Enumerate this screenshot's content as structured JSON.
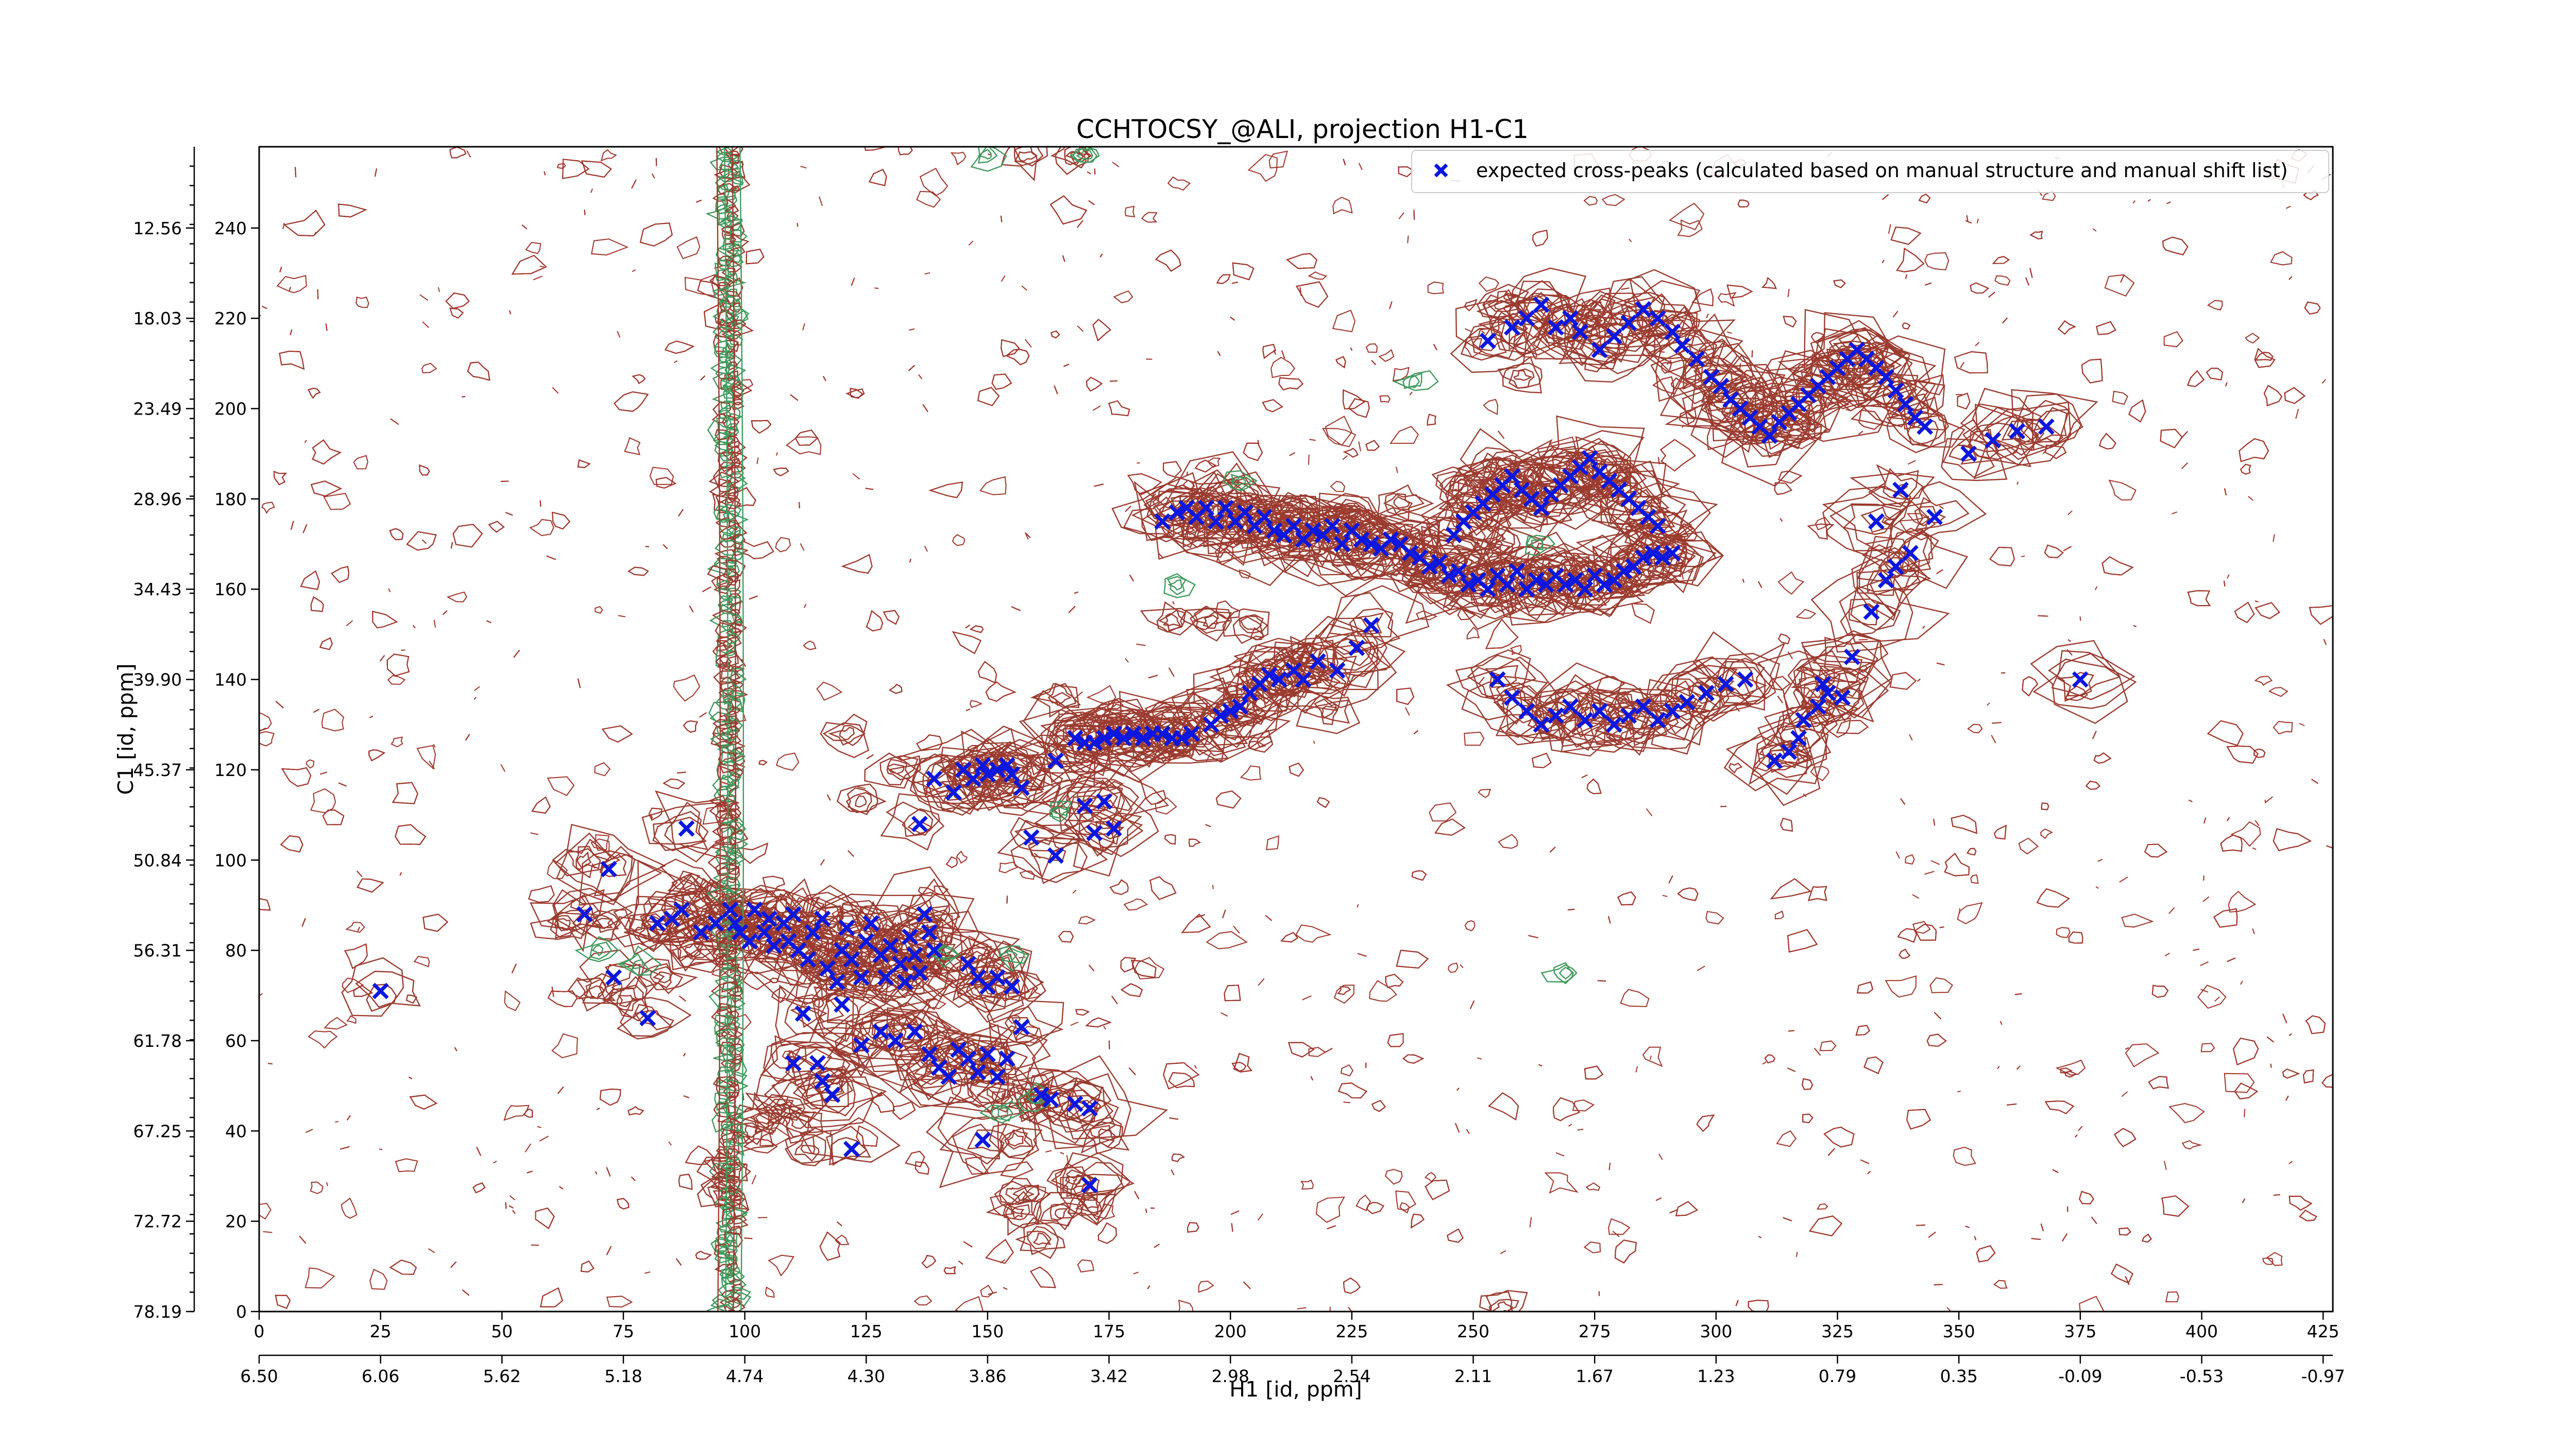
{
  "chart_data": {
    "type": "scatter",
    "title": "CCHTOCSY_@ALI, projection H1-C1",
    "xlabel": "H1 [id, ppm]",
    "ylabel": "C1 [id, ppm]",
    "xlim": [
      0,
      427
    ],
    "ylim": [
      0,
      258
    ],
    "grid": false,
    "legend": {
      "position": "top-right",
      "entries": [
        "expected cross-peaks (calculated based on manual structure and manual shift list)"
      ]
    },
    "x_ticks_index": [
      "0",
      "25",
      "50",
      "75",
      "100",
      "125",
      "150",
      "175",
      "200",
      "225",
      "250",
      "275",
      "300",
      "325",
      "350",
      "375",
      "400",
      "425"
    ],
    "x_ticks_ppm": [
      "6.50",
      "6.06",
      "5.62",
      "5.18",
      "4.74",
      "4.30",
      "3.86",
      "3.42",
      "2.98",
      "2.54",
      "2.11",
      "1.67",
      "1.23",
      "0.79",
      "0.35",
      "-0.09",
      "-0.53",
      "-0.97"
    ],
    "y_ticks_index": [
      "0",
      "20",
      "40",
      "60",
      "80",
      "100",
      "120",
      "140",
      "160",
      "180",
      "200",
      "220",
      "240"
    ],
    "y_ticks_ppm": [
      "78.19",
      "72.72",
      "67.25",
      "61.78",
      "56.31",
      "50.84",
      "45.37",
      "39.90",
      "34.43",
      "28.96",
      "23.49",
      "18.03",
      "12.56"
    ],
    "series": [
      {
        "name": "expected cross-peaks (calculated based on manual structure and manual shift list)",
        "color": "#0a17e0",
        "marker": "x",
        "points": [
          [
            25,
            71
          ],
          [
            67,
            88
          ],
          [
            72,
            98
          ],
          [
            73,
            74
          ],
          [
            80,
            65
          ],
          [
            82,
            86
          ],
          [
            85,
            87
          ],
          [
            87,
            89
          ],
          [
            88,
            107
          ],
          [
            91,
            84
          ],
          [
            94,
            86
          ],
          [
            97,
            89
          ],
          [
            98,
            86
          ],
          [
            99,
            84
          ],
          [
            101,
            82
          ],
          [
            102,
            89
          ],
          [
            104,
            84
          ],
          [
            105,
            87
          ],
          [
            106,
            81
          ],
          [
            108,
            86
          ],
          [
            109,
            82
          ],
          [
            110,
            88
          ],
          [
            111,
            80
          ],
          [
            113,
            78
          ],
          [
            114,
            84
          ],
          [
            116,
            87
          ],
          [
            117,
            76
          ],
          [
            119,
            73
          ],
          [
            120,
            80
          ],
          [
            121,
            85
          ],
          [
            122,
            78
          ],
          [
            124,
            74
          ],
          [
            125,
            82
          ],
          [
            126,
            86
          ],
          [
            128,
            79
          ],
          [
            129,
            74
          ],
          [
            130,
            81
          ],
          [
            132,
            77
          ],
          [
            133,
            73
          ],
          [
            134,
            83
          ],
          [
            135,
            79
          ],
          [
            136,
            75
          ],
          [
            137,
            88
          ],
          [
            138,
            84
          ],
          [
            139,
            80
          ],
          [
            110,
            55
          ],
          [
            112,
            66
          ],
          [
            115,
            55
          ],
          [
            116,
            51
          ],
          [
            118,
            48
          ],
          [
            120,
            68
          ],
          [
            122,
            36
          ],
          [
            124,
            59
          ],
          [
            128,
            62
          ],
          [
            131,
            60
          ],
          [
            135,
            62
          ],
          [
            138,
            57
          ],
          [
            140,
            54
          ],
          [
            142,
            52
          ],
          [
            144,
            58
          ],
          [
            146,
            56
          ],
          [
            148,
            53
          ],
          [
            150,
            57
          ],
          [
            152,
            52
          ],
          [
            154,
            56
          ],
          [
            149,
            38
          ],
          [
            146,
            77
          ],
          [
            148,
            74
          ],
          [
            150,
            72
          ],
          [
            152,
            74
          ],
          [
            155,
            72
          ],
          [
            157,
            63
          ],
          [
            161,
            48
          ],
          [
            163,
            47
          ],
          [
            168,
            46
          ],
          [
            171,
            45
          ],
          [
            171,
            28
          ],
          [
            136,
            108
          ],
          [
            139,
            118
          ],
          [
            143,
            115
          ],
          [
            145,
            120
          ],
          [
            147,
            118
          ],
          [
            149,
            121
          ],
          [
            150,
            119
          ],
          [
            152,
            120
          ],
          [
            154,
            121
          ],
          [
            155,
            119
          ],
          [
            157,
            116
          ],
          [
            159,
            105
          ],
          [
            164,
            101
          ],
          [
            170,
            112
          ],
          [
            172,
            106
          ],
          [
            174,
            113
          ],
          [
            176,
            107
          ],
          [
            164,
            122
          ],
          [
            168,
            127
          ],
          [
            170,
            126
          ],
          [
            172,
            126
          ],
          [
            174,
            127
          ],
          [
            176,
            128
          ],
          [
            178,
            127
          ],
          [
            180,
            128
          ],
          [
            182,
            127
          ],
          [
            184,
            128
          ],
          [
            186,
            128
          ],
          [
            188,
            127
          ],
          [
            190,
            127
          ],
          [
            192,
            128
          ],
          [
            196,
            130
          ],
          [
            198,
            132
          ],
          [
            200,
            133
          ],
          [
            202,
            134
          ],
          [
            204,
            137
          ],
          [
            206,
            139
          ],
          [
            208,
            141
          ],
          [
            210,
            140
          ],
          [
            213,
            142
          ],
          [
            215,
            140
          ],
          [
            218,
            144
          ],
          [
            222,
            142
          ],
          [
            226,
            147
          ],
          [
            229,
            152
          ],
          [
            186,
            175
          ],
          [
            189,
            177
          ],
          [
            191,
            178
          ],
          [
            193,
            176
          ],
          [
            195,
            178
          ],
          [
            197,
            175
          ],
          [
            199,
            178
          ],
          [
            201,
            175
          ],
          [
            203,
            177
          ],
          [
            205,
            174
          ],
          [
            207,
            176
          ],
          [
            209,
            173
          ],
          [
            211,
            172
          ],
          [
            213,
            174
          ],
          [
            215,
            171
          ],
          [
            217,
            173
          ],
          [
            219,
            172
          ],
          [
            221,
            174
          ],
          [
            223,
            170
          ],
          [
            225,
            173
          ],
          [
            227,
            171
          ],
          [
            229,
            170
          ],
          [
            231,
            169
          ],
          [
            233,
            171
          ],
          [
            235,
            170
          ],
          [
            237,
            168
          ],
          [
            239,
            167
          ],
          [
            241,
            165
          ],
          [
            243,
            166
          ],
          [
            245,
            163
          ],
          [
            247,
            164
          ],
          [
            249,
            161
          ],
          [
            251,
            162
          ],
          [
            253,
            160
          ],
          [
            255,
            163
          ],
          [
            257,
            161
          ],
          [
            259,
            164
          ],
          [
            261,
            160
          ],
          [
            263,
            162
          ],
          [
            265,
            161
          ],
          [
            267,
            163
          ],
          [
            269,
            161
          ],
          [
            271,
            162
          ],
          [
            273,
            160
          ],
          [
            275,
            163
          ],
          [
            277,
            161
          ],
          [
            279,
            162
          ],
          [
            281,
            164
          ],
          [
            283,
            165
          ],
          [
            285,
            167
          ],
          [
            287,
            168
          ],
          [
            289,
            167
          ],
          [
            291,
            168
          ],
          [
            246,
            172
          ],
          [
            248,
            175
          ],
          [
            250,
            177
          ],
          [
            252,
            179
          ],
          [
            254,
            181
          ],
          [
            256,
            183
          ],
          [
            258,
            185
          ],
          [
            260,
            182
          ],
          [
            262,
            180
          ],
          [
            264,
            178
          ],
          [
            266,
            181
          ],
          [
            268,
            183
          ],
          [
            270,
            185
          ],
          [
            272,
            187
          ],
          [
            274,
            189
          ],
          [
            276,
            186
          ],
          [
            278,
            184
          ],
          [
            280,
            182
          ],
          [
            282,
            180
          ],
          [
            284,
            178
          ],
          [
            286,
            176
          ],
          [
            288,
            174
          ],
          [
            253,
            215
          ],
          [
            258,
            218
          ],
          [
            261,
            220
          ],
          [
            264,
            223
          ],
          [
            267,
            218
          ],
          [
            270,
            220
          ],
          [
            272,
            217
          ],
          [
            276,
            213
          ],
          [
            279,
            216
          ],
          [
            282,
            219
          ],
          [
            285,
            222
          ],
          [
            288,
            220
          ],
          [
            291,
            217
          ],
          [
            293,
            214
          ],
          [
            296,
            211
          ],
          [
            299,
            207
          ],
          [
            301,
            205
          ],
          [
            303,
            202
          ],
          [
            305,
            200
          ],
          [
            307,
            198
          ],
          [
            309,
            196
          ],
          [
            311,
            194
          ],
          [
            313,
            197
          ],
          [
            315,
            199
          ],
          [
            317,
            201
          ],
          [
            319,
            203
          ],
          [
            321,
            205
          ],
          [
            323,
            207
          ],
          [
            325,
            209
          ],
          [
            327,
            211
          ],
          [
            329,
            213
          ],
          [
            331,
            211
          ],
          [
            333,
            209
          ],
          [
            335,
            207
          ],
          [
            337,
            204
          ],
          [
            339,
            201
          ],
          [
            341,
            198
          ],
          [
            343,
            196
          ],
          [
            352,
            190
          ],
          [
            357,
            193
          ],
          [
            362,
            195
          ],
          [
            368,
            196
          ],
          [
            312,
            122
          ],
          [
            315,
            124
          ],
          [
            317,
            127
          ],
          [
            318,
            131
          ],
          [
            321,
            134
          ],
          [
            323,
            137
          ],
          [
            326,
            136
          ],
          [
            328,
            145
          ],
          [
            332,
            155
          ],
          [
            335,
            162
          ],
          [
            337,
            165
          ],
          [
            340,
            168
          ],
          [
            255,
            140
          ],
          [
            258,
            136
          ],
          [
            261,
            133
          ],
          [
            264,
            130
          ],
          [
            267,
            132
          ],
          [
            270,
            134
          ],
          [
            273,
            131
          ],
          [
            276,
            133
          ],
          [
            279,
            130
          ],
          [
            282,
            132
          ],
          [
            285,
            134
          ],
          [
            288,
            131
          ],
          [
            291,
            133
          ],
          [
            294,
            135
          ],
          [
            298,
            137
          ],
          [
            302,
            139
          ],
          [
            306,
            140
          ],
          [
            322,
            139
          ],
          [
            333,
            175
          ],
          [
            338,
            182
          ],
          [
            345,
            176
          ],
          [
            375,
            140
          ]
        ]
      }
    ]
  }
}
